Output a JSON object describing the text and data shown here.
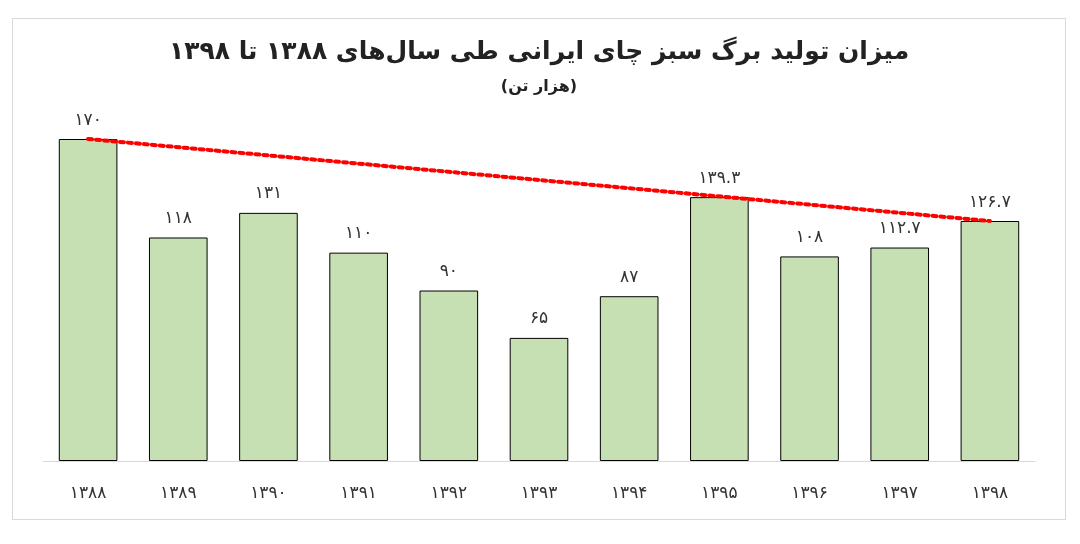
{
  "chart_data": {
    "type": "bar",
    "title": "میزان تولید برگ سبز چای ایرانی طی سال‌های ۱۳۸۸ تا ۱۳۹۸",
    "subtitle": "(هزار تن)",
    "categories": [
      "۱۳۸۸",
      "۱۳۸۹",
      "۱۳۹۰",
      "۱۳۹۱",
      "۱۳۹۲",
      "۱۳۹۳",
      "۱۳۹۴",
      "۱۳۹۵",
      "۱۳۹۶",
      "۱۳۹۷",
      "۱۳۹۸"
    ],
    "series": [
      {
        "color": "#c6e0b4",
        "values": [
          170,
          118,
          131,
          110,
          90,
          65,
          87,
          139.3,
          108,
          112.7,
          126.7
        ],
        "value_labels": [
          "۱۷۰",
          "۱۱۸",
          "۱۳۱",
          "۱۱۰",
          "۹۰",
          "۶۵",
          "۸۷",
          "۱۳۹.۳",
          "۱۰۸",
          "۱۱۲.۷",
          "۱۲۶.۷"
        ]
      },
      {
        "type": "line",
        "color": "#ff0000",
        "line_style": "dotted",
        "values": [
          170,
          null,
          null,
          null,
          null,
          null,
          null,
          null,
          null,
          null,
          126.7
        ]
      }
    ],
    "tick_labels": "x",
    "grid": false
  }
}
